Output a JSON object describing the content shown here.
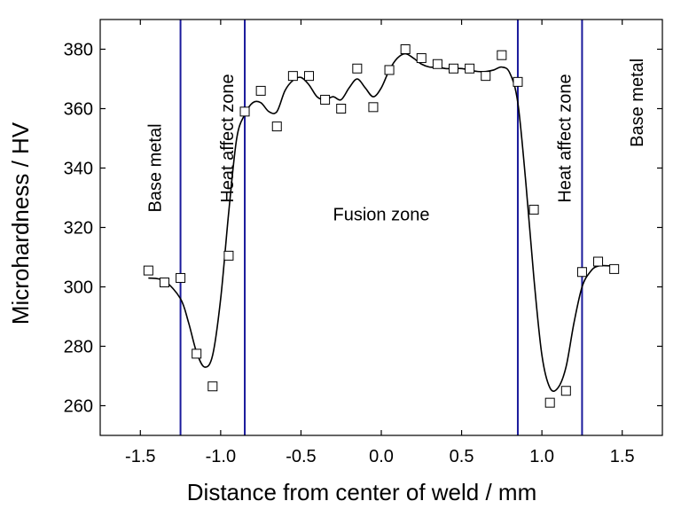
{
  "chart_data": {
    "type": "scatter",
    "xlabel": "Distance from center of weld / mm",
    "ylabel": "Microhardness / HV",
    "xlim": [
      -1.75,
      1.75
    ],
    "ylim": [
      250,
      390
    ],
    "x_ticks": [
      -1.5,
      -1.0,
      -0.5,
      0.0,
      0.5,
      1.0,
      1.5
    ],
    "x_tick_labels": [
      "-1.5",
      "-1.0",
      "-0.5",
      "0.0",
      "0.5",
      "1.0",
      "1.5"
    ],
    "y_ticks": [
      260,
      280,
      300,
      320,
      340,
      360,
      380
    ],
    "y_tick_labels": [
      "260",
      "280",
      "300",
      "320",
      "340",
      "360",
      "380"
    ],
    "grid": false,
    "series": [
      {
        "marker": "open-square",
        "x": [
          -1.45,
          -1.35,
          -1.25,
          -1.15,
          -1.05,
          -0.95,
          -0.85,
          -0.75,
          -0.65,
          -0.55,
          -0.45,
          -0.35,
          -0.25,
          -0.15,
          -0.05,
          0.05,
          0.15,
          0.25,
          0.35,
          0.45,
          0.55,
          0.65,
          0.75,
          0.85,
          0.95,
          1.05,
          1.15,
          1.25,
          1.35,
          1.45
        ],
        "y": [
          305.5,
          301.5,
          303,
          277.5,
          266.5,
          310.5,
          359,
          366,
          354,
          371,
          371,
          363,
          360,
          373.5,
          360.5,
          373,
          380,
          377,
          375,
          373.5,
          373.5,
          371,
          378,
          369,
          326,
          261,
          265,
          305,
          308.5,
          306
        ]
      }
    ],
    "fit_curve": {
      "x": [
        -1.45,
        -1.35,
        -1.25,
        -1.2,
        -1.15,
        -1.1,
        -1.05,
        -1.0,
        -0.95,
        -0.9,
        -0.85,
        -0.8,
        -0.75,
        -0.7,
        -0.65,
        -0.6,
        -0.55,
        -0.5,
        -0.45,
        -0.4,
        -0.35,
        -0.3,
        -0.25,
        -0.2,
        -0.15,
        -0.1,
        -0.05,
        0.0,
        0.05,
        0.1,
        0.15,
        0.2,
        0.25,
        0.3,
        0.35,
        0.4,
        0.45,
        0.5,
        0.55,
        0.6,
        0.65,
        0.7,
        0.75,
        0.8,
        0.85,
        0.9,
        0.95,
        1.0,
        1.05,
        1.1,
        1.15,
        1.2,
        1.25,
        1.3,
        1.35,
        1.45
      ],
      "y": [
        303,
        302,
        296,
        288,
        278,
        273,
        277,
        296,
        325,
        350,
        358,
        362,
        362,
        359,
        359,
        366,
        369.5,
        370.5,
        368,
        364,
        363,
        364,
        363,
        367,
        370,
        367,
        364,
        367,
        373,
        377,
        378.5,
        377,
        375,
        374,
        374,
        373.5,
        373.5,
        373.5,
        373,
        372.5,
        372.5,
        373,
        374,
        372,
        362,
        335,
        303,
        277,
        266,
        266,
        273,
        288,
        300,
        305,
        307,
        307
      ]
    },
    "vertical_lines": {
      "color": "#1a1a9c",
      "x": [
        -1.25,
        -0.85,
        0.85,
        1.25
      ]
    },
    "annotations": [
      {
        "text": "Base metal",
        "x": -1.4,
        "y": 340,
        "rotation": -90
      },
      {
        "text": "Heat affect zone",
        "x": -0.95,
        "y": 350,
        "rotation": -90
      },
      {
        "text": "Fusion zone",
        "x": 0.0,
        "y": 324,
        "rotation": 0
      },
      {
        "text": "Heat affect zone",
        "x": 1.15,
        "y": 350,
        "rotation": -90
      },
      {
        "text": "Base metal",
        "x": 1.6,
        "y": 362,
        "rotation": -90
      }
    ]
  }
}
